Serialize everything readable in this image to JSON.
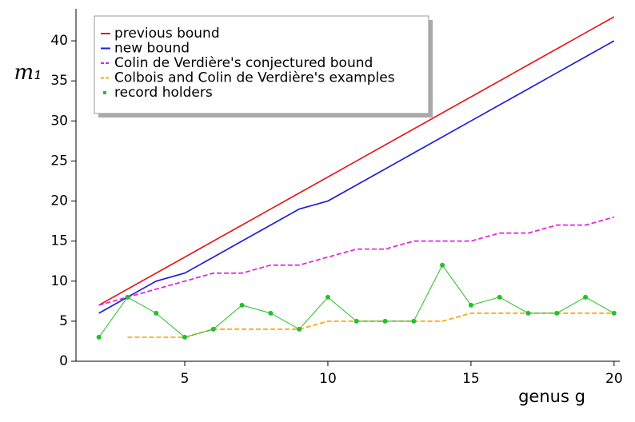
{
  "chart_data": {
    "type": "line",
    "xlabel": "genus  g",
    "ylabel": "m₁",
    "x": [
      2,
      3,
      4,
      5,
      6,
      7,
      8,
      9,
      10,
      11,
      12,
      13,
      14,
      15,
      16,
      17,
      18,
      19,
      20
    ],
    "series": [
      {
        "name": "previous bound",
        "color": "#e41a1c",
        "dash": false,
        "markers": false,
        "values": [
          7,
          9,
          11,
          13,
          15,
          17,
          19,
          21,
          23,
          25,
          27,
          29,
          31,
          33,
          35,
          37,
          39,
          41,
          43
        ]
      },
      {
        "name": "new bound",
        "color": "#1f1fd6",
        "dash": false,
        "markers": false,
        "values": [
          6,
          8,
          10,
          11,
          13,
          15,
          17,
          19,
          20,
          22,
          24,
          26,
          28,
          30,
          32,
          34,
          36,
          38,
          40
        ]
      },
      {
        "name": "Colin de Verdière's conjectured bound",
        "color": "#e020e0",
        "dash": true,
        "markers": false,
        "values": [
          7,
          8,
          9,
          10,
          11,
          11,
          12,
          12,
          13,
          14,
          14,
          15,
          15,
          15,
          16,
          16,
          17,
          17,
          18
        ]
      },
      {
        "name": "Colbois and Colin de Verdière's examples",
        "color": "#ffa500",
        "dash": true,
        "markers": false,
        "values": [
          null,
          3,
          3,
          3,
          4,
          4,
          4,
          4,
          5,
          5,
          5,
          5,
          5,
          6,
          6,
          6,
          6,
          6,
          6
        ]
      },
      {
        "name": "record holders",
        "color": "#22c02a",
        "dash": false,
        "markers": true,
        "values": [
          3,
          8,
          6,
          3,
          4,
          7,
          6,
          4,
          8,
          5,
          5,
          5,
          12,
          7,
          8,
          6,
          6,
          8,
          6
        ]
      }
    ],
    "xlim": [
      1.2,
      20.2
    ],
    "ylim": [
      0,
      44
    ],
    "xticks": [
      5,
      10,
      15,
      20
    ],
    "yticks": [
      0,
      5,
      10,
      15,
      20,
      25,
      30,
      35,
      40
    ],
    "grid": false,
    "legend": "upper left"
  }
}
